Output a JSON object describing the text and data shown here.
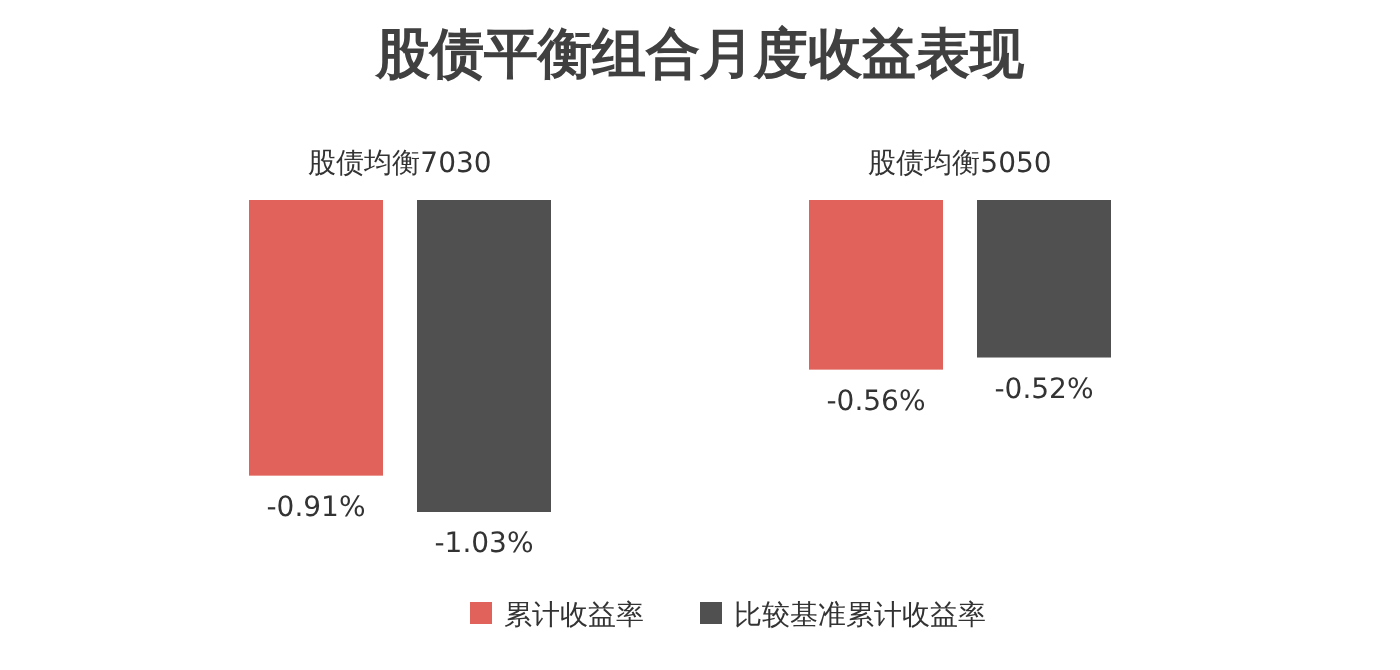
{
  "chart_data": {
    "type": "bar",
    "title": "股债平衡组合月度收益表现",
    "categories": [
      "股债均衡7030",
      "股债均衡5050"
    ],
    "series": [
      {
        "name": "累计收益率",
        "color": "#e0625a",
        "values": [
          -0.91,
          -0.56
        ],
        "value_labels": [
          "-0.91%",
          "-0.56%"
        ]
      },
      {
        "name": "比较基准累计收益率",
        "color": "#505050",
        "values": [
          -1.03,
          -0.52
        ],
        "value_labels": [
          "-1.03%",
          "-0.52%"
        ]
      }
    ],
    "legend": "bottom"
  }
}
